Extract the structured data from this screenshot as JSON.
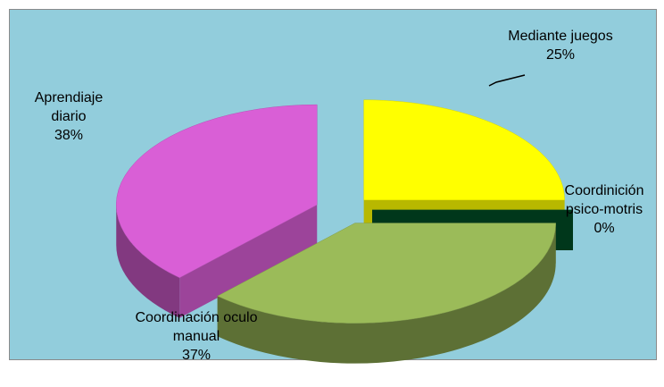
{
  "chart_data": {
    "type": "pie",
    "categories": [
      "Mediante juegos",
      "Coordinición psico-motris",
      "Coordinación oculo manual",
      "Aprendiaje diario"
    ],
    "values": [
      25,
      0,
      37,
      38
    ],
    "value_labels": [
      "25%",
      "0%",
      "37%",
      "38%"
    ],
    "colors": [
      "#ffff00",
      "#004d26",
      "#9bbb59",
      "#d95fd6"
    ],
    "exploded": true,
    "three_d": true
  }
}
